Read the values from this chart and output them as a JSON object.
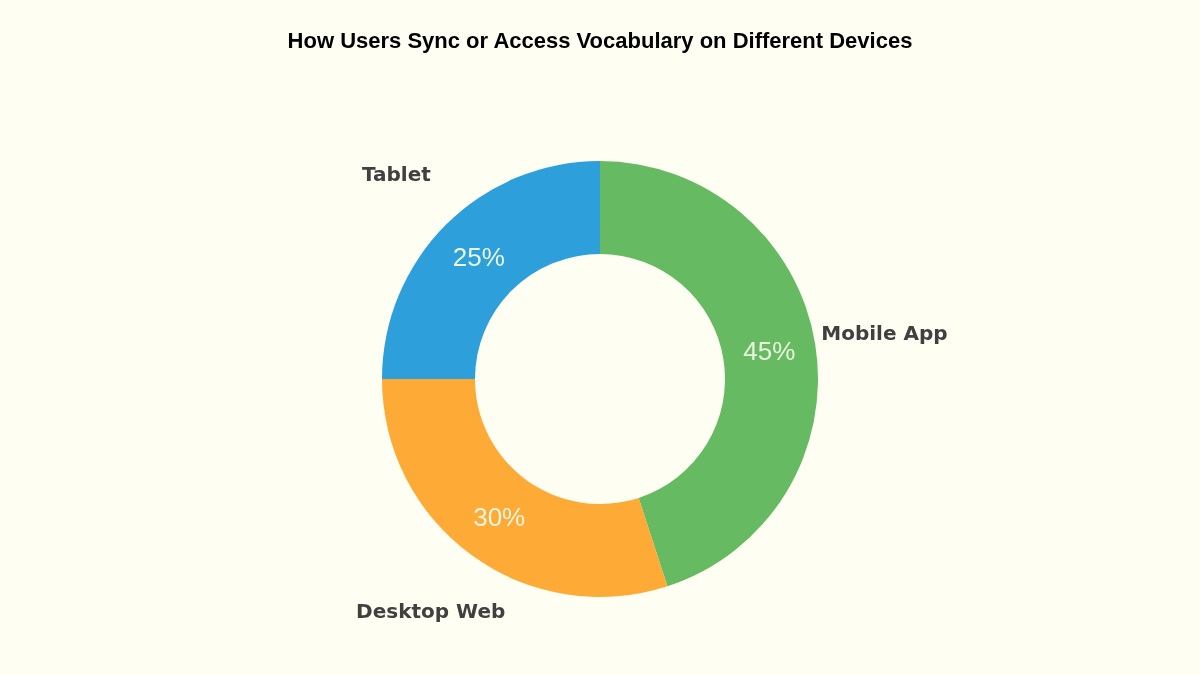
{
  "chart_data": {
    "type": "donut",
    "title": "How Users Sync or Access Vocabulary on Different Devices",
    "categories": [
      "Mobile App",
      "Desktop Web",
      "Tablet"
    ],
    "values": [
      45,
      30,
      25
    ],
    "colors": [
      "#66bb62",
      "#fdaa37",
      "#2d9fdb"
    ],
    "value_labels": [
      "45%",
      "30%",
      "25%"
    ],
    "legend": false
  }
}
